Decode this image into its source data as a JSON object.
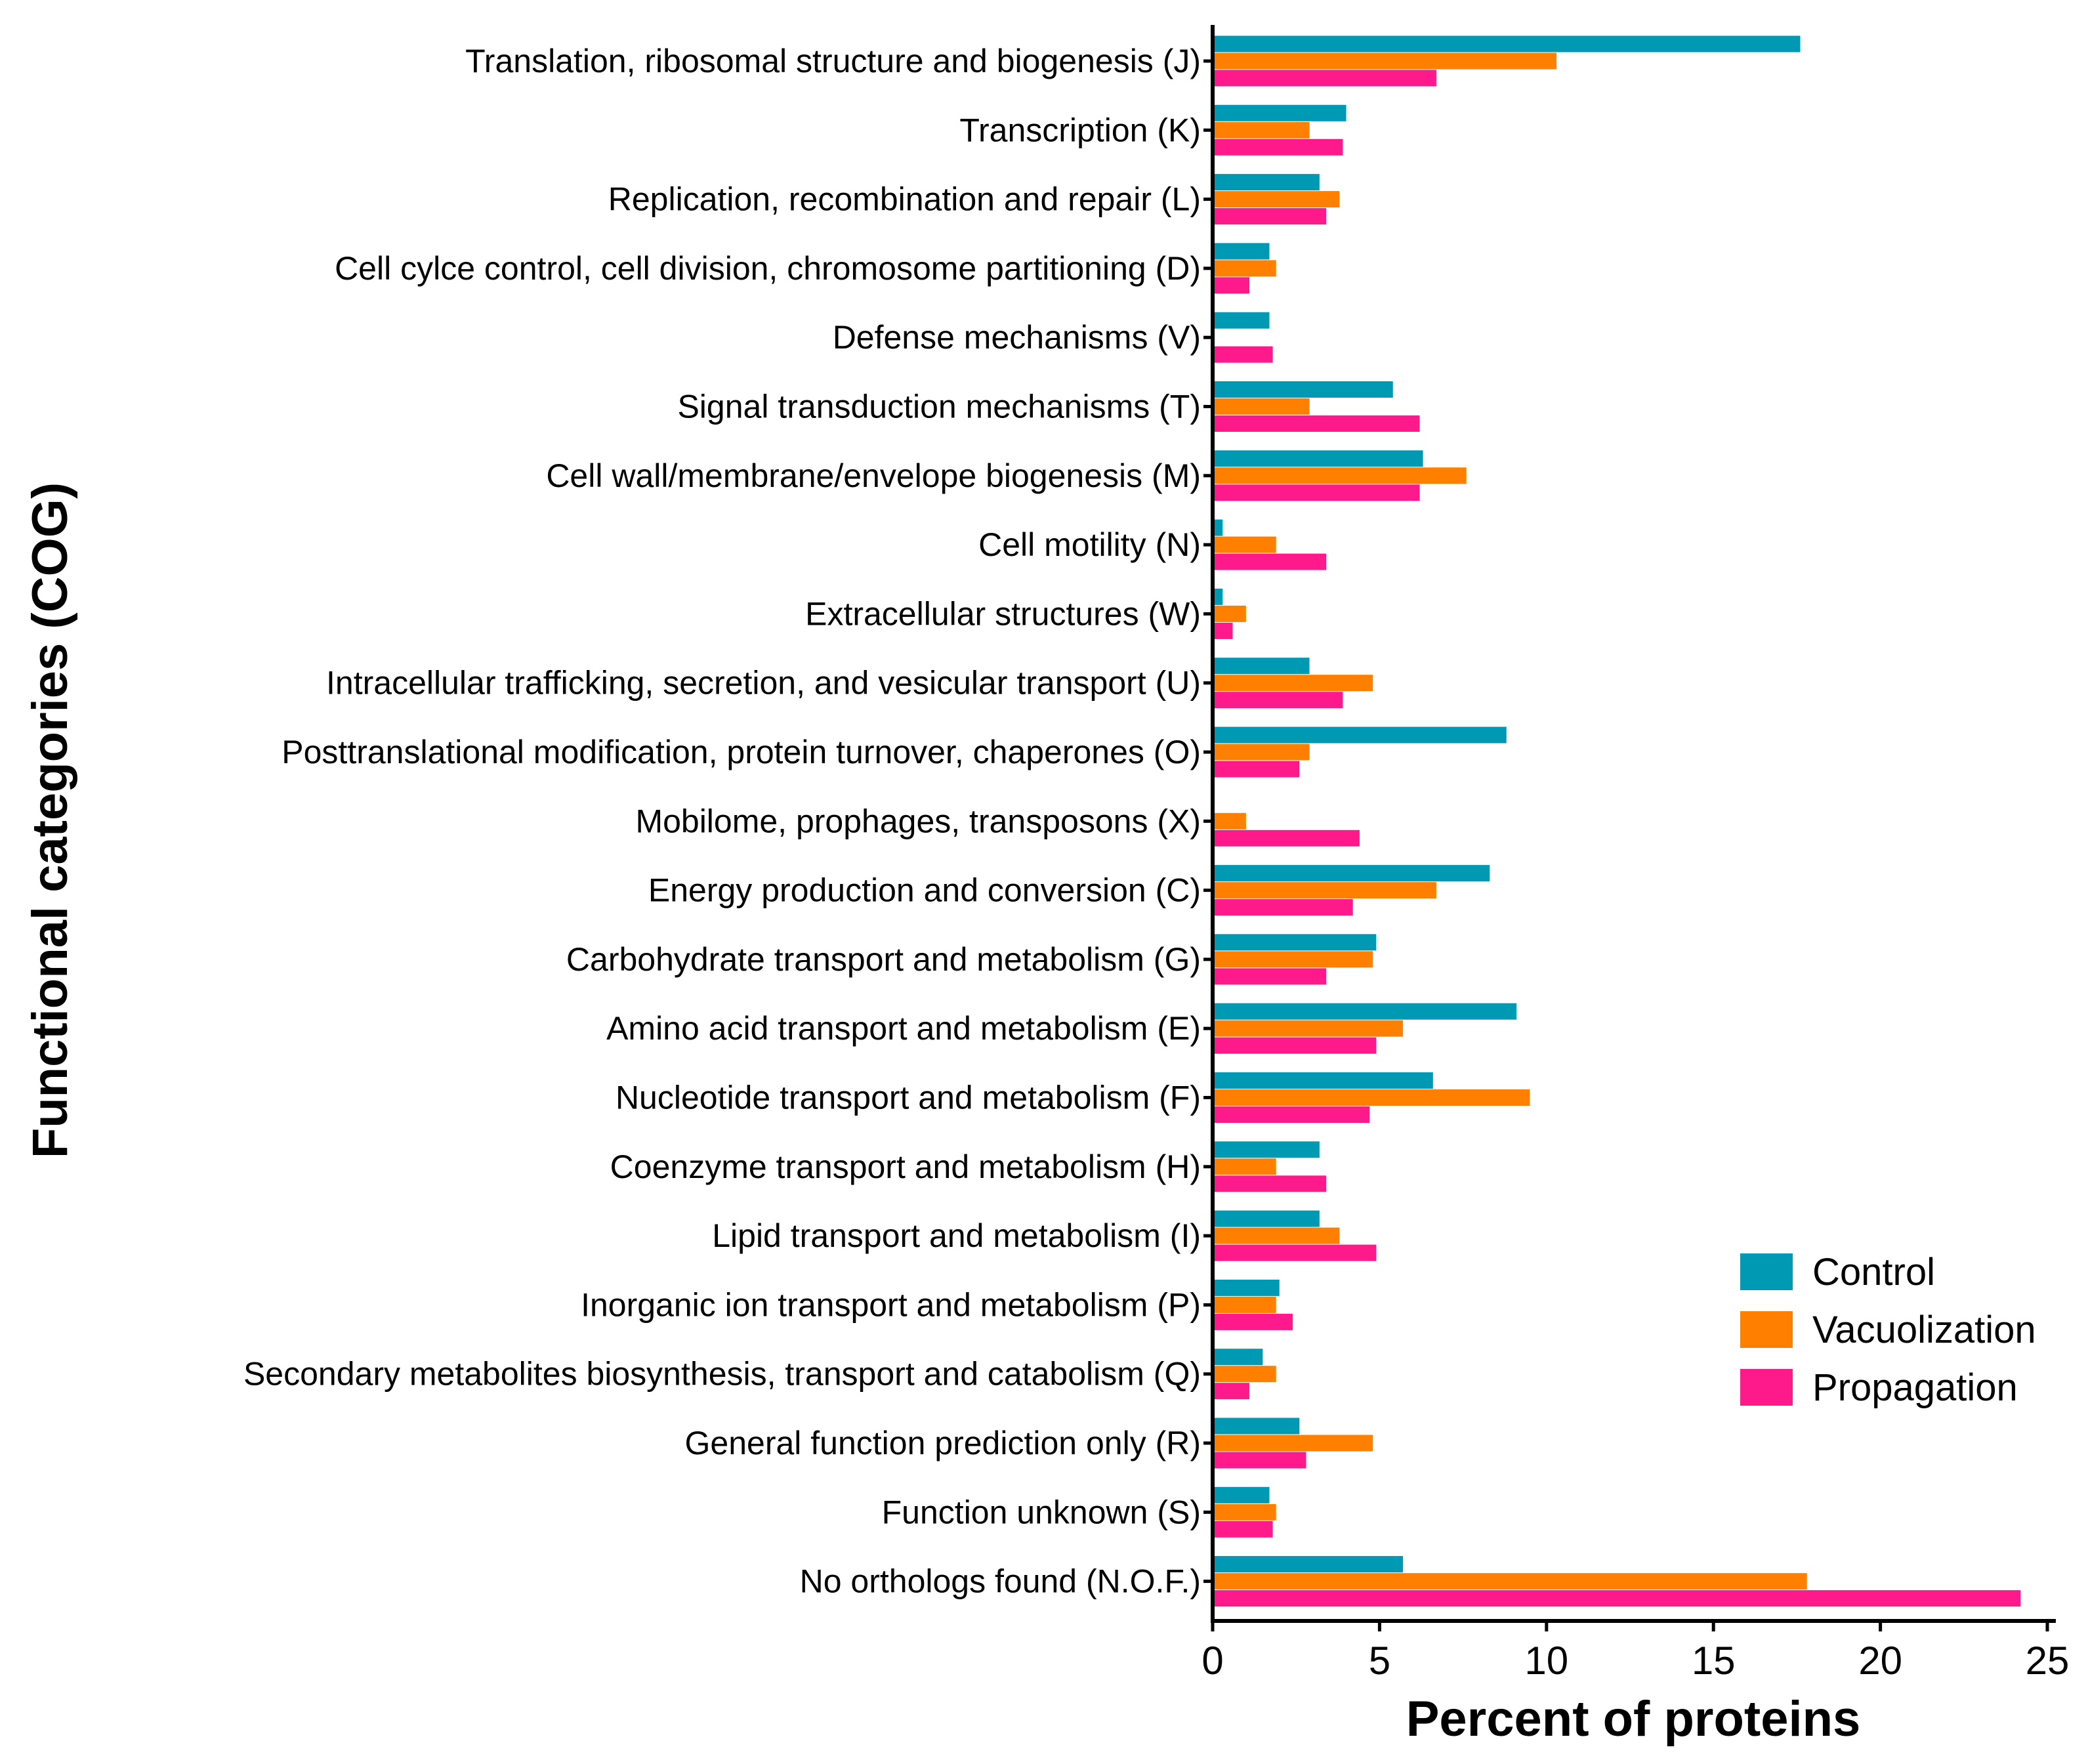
{
  "chart_data": {
    "type": "bar",
    "orientation": "horizontal",
    "title": "",
    "xlabel": "Percent of proteins",
    "ylabel": "Functional categories (COG)",
    "xlim": [
      0,
      25
    ],
    "xticks": [
      0,
      5,
      10,
      15,
      20,
      25
    ],
    "grid": false,
    "legend_position": "lower-right",
    "categories": [
      "Translation, ribosomal structure and biogenesis (J)",
      "Transcription (K)",
      "Replication, recombination and repair (L)",
      "Cell cylce control, cell division, chromosome partitioning (D)",
      "Defense mechanisms (V)",
      "Signal transduction mechanisms (T)",
      "Cell wall/membrane/envelope biogenesis (M)",
      "Cell motility (N)",
      "Extracellular structures (W)",
      "Intracellular trafficking, secretion, and vesicular transport (U)",
      "Posttranslational modification, protein turnover, chaperones (O)",
      "Mobilome, prophages, transposons (X)",
      "Energy production and conversion (C)",
      "Carbohydrate transport and metabolism (G)",
      "Amino acid transport and metabolism (E)",
      "Nucleotide transport and metabolism (F)",
      "Coenzyme transport and metabolism (H)",
      "Lipid transport and metabolism (I)",
      "Inorganic ion transport and metabolism (P)",
      "Secondary metabolites biosynthesis, transport and catabolism (Q)",
      "General function prediction only (R)",
      "Function unknown (S)",
      "No orthologs found (N.O.F.)"
    ],
    "series": [
      {
        "name": "Control",
        "color": "#0099b3",
        "values": [
          17.6,
          4.0,
          3.2,
          1.7,
          1.7,
          5.4,
          6.3,
          0.3,
          0.3,
          2.9,
          8.8,
          0.0,
          8.3,
          4.9,
          9.1,
          6.6,
          3.2,
          3.2,
          2.0,
          1.5,
          2.6,
          1.7,
          5.7
        ]
      },
      {
        "name": "Vacuolization",
        "color": "#ff8000",
        "values": [
          10.3,
          2.9,
          3.8,
          1.9,
          0.0,
          2.9,
          7.6,
          1.9,
          1.0,
          4.8,
          2.9,
          1.0,
          6.7,
          4.8,
          5.7,
          9.5,
          1.9,
          3.8,
          1.9,
          1.9,
          4.8,
          1.9,
          17.8
        ]
      },
      {
        "name": "Propagation",
        "color": "#ff1a8c",
        "values": [
          6.7,
          3.9,
          3.4,
          1.1,
          1.8,
          6.2,
          6.2,
          3.4,
          0.6,
          3.9,
          2.6,
          4.4,
          4.2,
          3.4,
          4.9,
          4.7,
          3.4,
          4.9,
          2.4,
          1.1,
          2.8,
          1.8,
          24.2
        ]
      }
    ]
  }
}
